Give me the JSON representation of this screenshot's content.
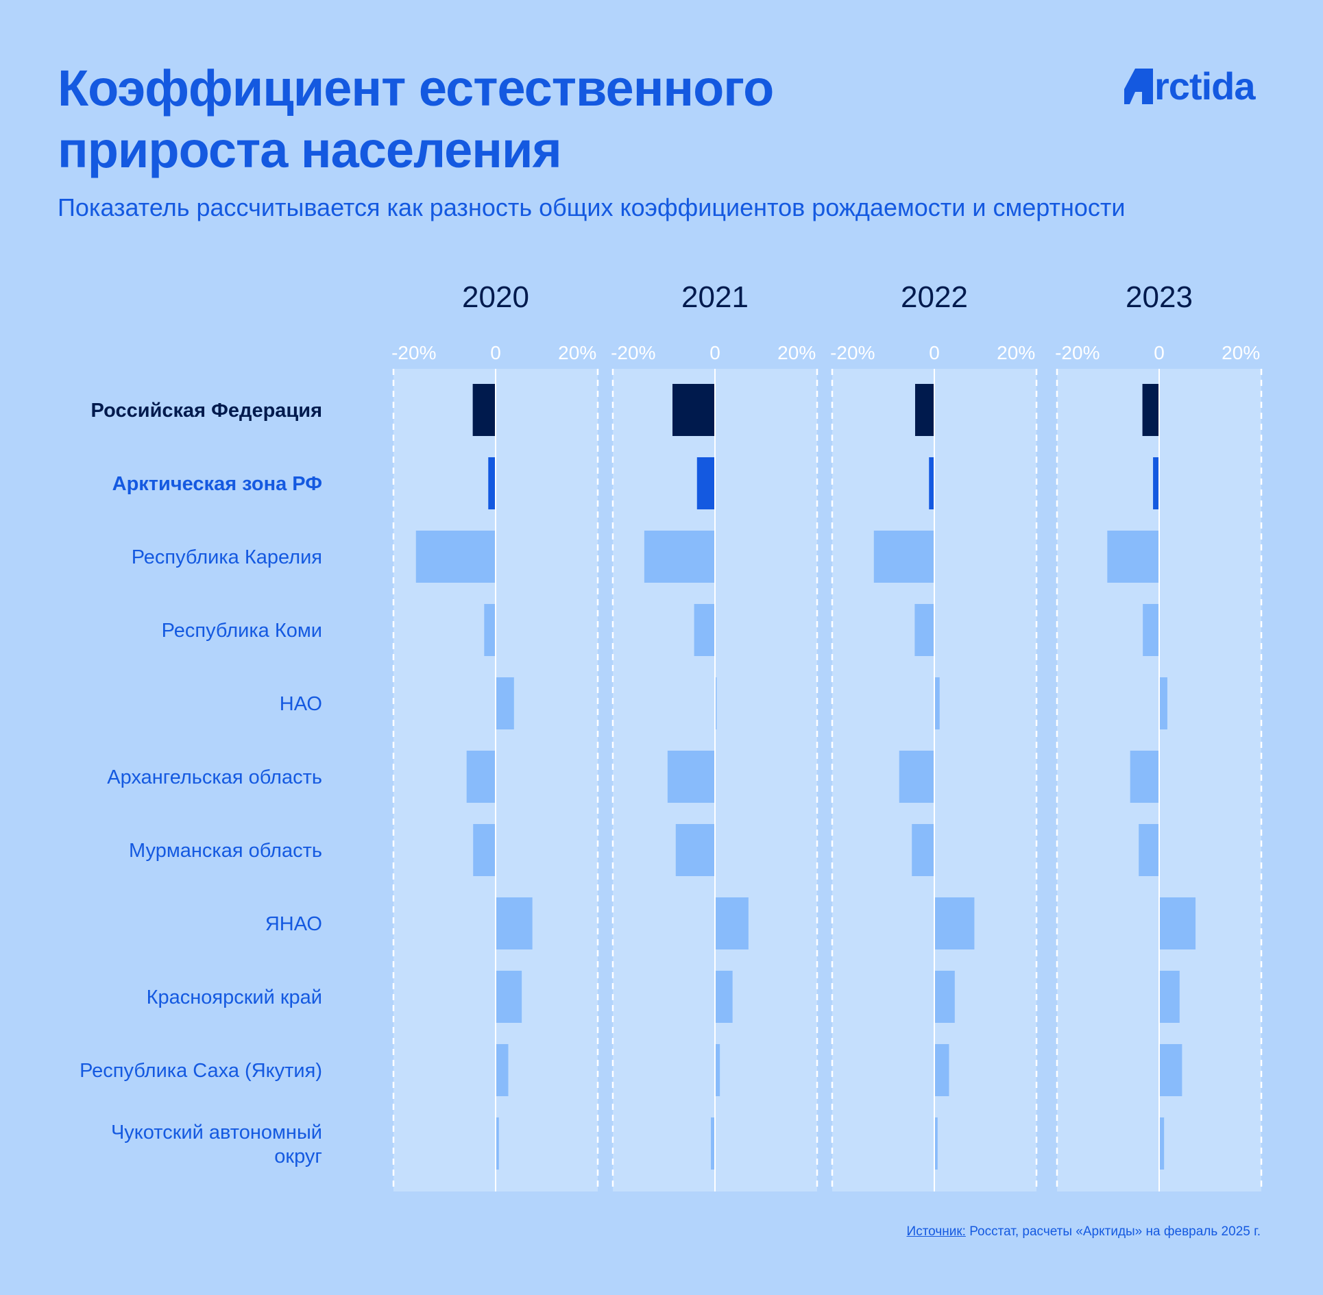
{
  "title_lines": [
    "Коэффициент естественного",
    "прироста населения"
  ],
  "subtitle": "Показатель рассчитывается как разность общих коэффициентов рождаемости и смертности",
  "logo": {
    "text": "rctida",
    "icon": "arctida-a-icon"
  },
  "source": {
    "label": "Источник:",
    "text": " Росстат, расчеты «Арктиды» на февраль 2025 г."
  },
  "colors": {
    "background": "#b3d4fc",
    "panel": "#c5dffd",
    "accent": "#1459e0",
    "dark": "#001a4d",
    "light_bar": "#88bbfb",
    "axis_text": "#ffffff"
  },
  "chart_data": {
    "type": "bar",
    "orientation": "horizontal",
    "panels": [
      "2020",
      "2021",
      "2022",
      "2023"
    ],
    "xlim": [
      -25,
      25
    ],
    "ticks": [
      {
        "value": -20,
        "label": "-20%"
      },
      {
        "value": 0,
        "label": "0"
      },
      {
        "value": 20,
        "label": "20%"
      }
    ],
    "rows": [
      {
        "label": "Российская Федерация",
        "style": "dark",
        "values": [
          -5.6,
          -10.4,
          -4.7,
          -4.1
        ]
      },
      {
        "label": "Арктическая зона РФ",
        "style": "accent",
        "values": [
          -1.8,
          -4.4,
          -1.3,
          -1.5
        ]
      },
      {
        "label": "Республика Карелия",
        "style": "light",
        "values": [
          -19.5,
          -17.3,
          -14.8,
          -12.7
        ]
      },
      {
        "label": "Республика Коми",
        "style": "light",
        "values": [
          -2.8,
          -5.1,
          -4.8,
          -4.0
        ]
      },
      {
        "label": "НАО",
        "style": "light",
        "values": [
          4.5,
          0.4,
          1.3,
          2.0
        ]
      },
      {
        "label": "Архангельская область",
        "style": "light",
        "values": [
          -7.1,
          -11.6,
          -8.6,
          -7.1
        ]
      },
      {
        "label": "Мурманская область",
        "style": "light",
        "values": [
          -5.5,
          -9.6,
          -5.5,
          -5.0
        ]
      },
      {
        "label": "ЯНАО",
        "style": "light",
        "values": [
          9.0,
          8.2,
          9.8,
          8.9
        ]
      },
      {
        "label": "Красноярский край",
        "style": "light",
        "values": [
          6.4,
          4.3,
          5.0,
          5.0
        ]
      },
      {
        "label": "Республика Саха (Якутия)",
        "style": "light",
        "values": [
          3.1,
          1.2,
          3.6,
          5.6
        ]
      },
      {
        "label": "Чукотский автономный округ",
        "style": "light",
        "values": [
          0.8,
          -1.0,
          0.8,
          1.2
        ]
      }
    ]
  }
}
